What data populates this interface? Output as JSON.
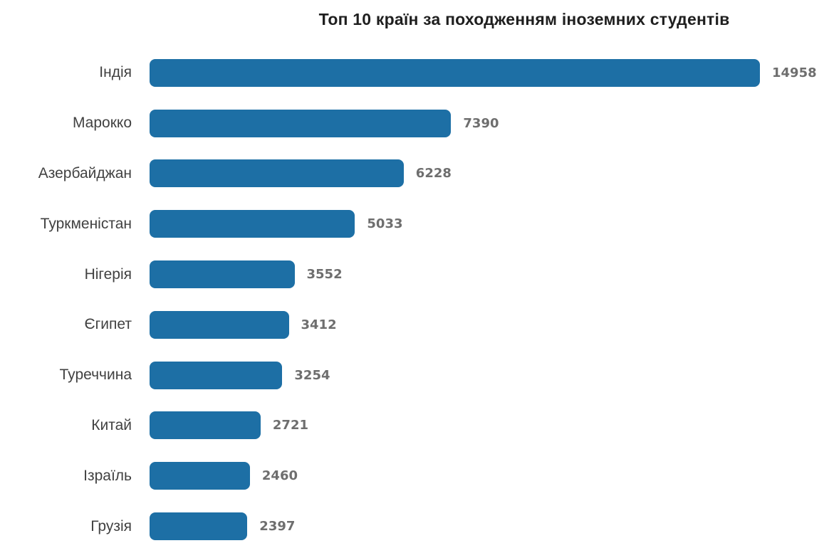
{
  "colors": {
    "background": "#ffffff",
    "bar": "#1d6fa5",
    "title": "#1f1f1f",
    "category_label": "#414141",
    "value_label": "#6e6e6e"
  },
  "chart_data": {
    "type": "bar",
    "orientation": "horizontal",
    "title": "Топ 10 країн за походженням іноземних студентів",
    "categories": [
      "Індія",
      "Марокко",
      "Азербайджан",
      "Туркменістан",
      "Нігерія",
      "Єгипет",
      "Туреччина",
      "Китай",
      "Ізраїль",
      "Грузія"
    ],
    "values": [
      14958,
      7390,
      6228,
      5033,
      3552,
      3412,
      3254,
      2721,
      2460,
      2397
    ],
    "xlim": [
      0,
      14958
    ],
    "xlabel": "",
    "ylabel": "",
    "grid": false,
    "legend": false,
    "value_labels_shown": true,
    "sort_order": "descending"
  }
}
